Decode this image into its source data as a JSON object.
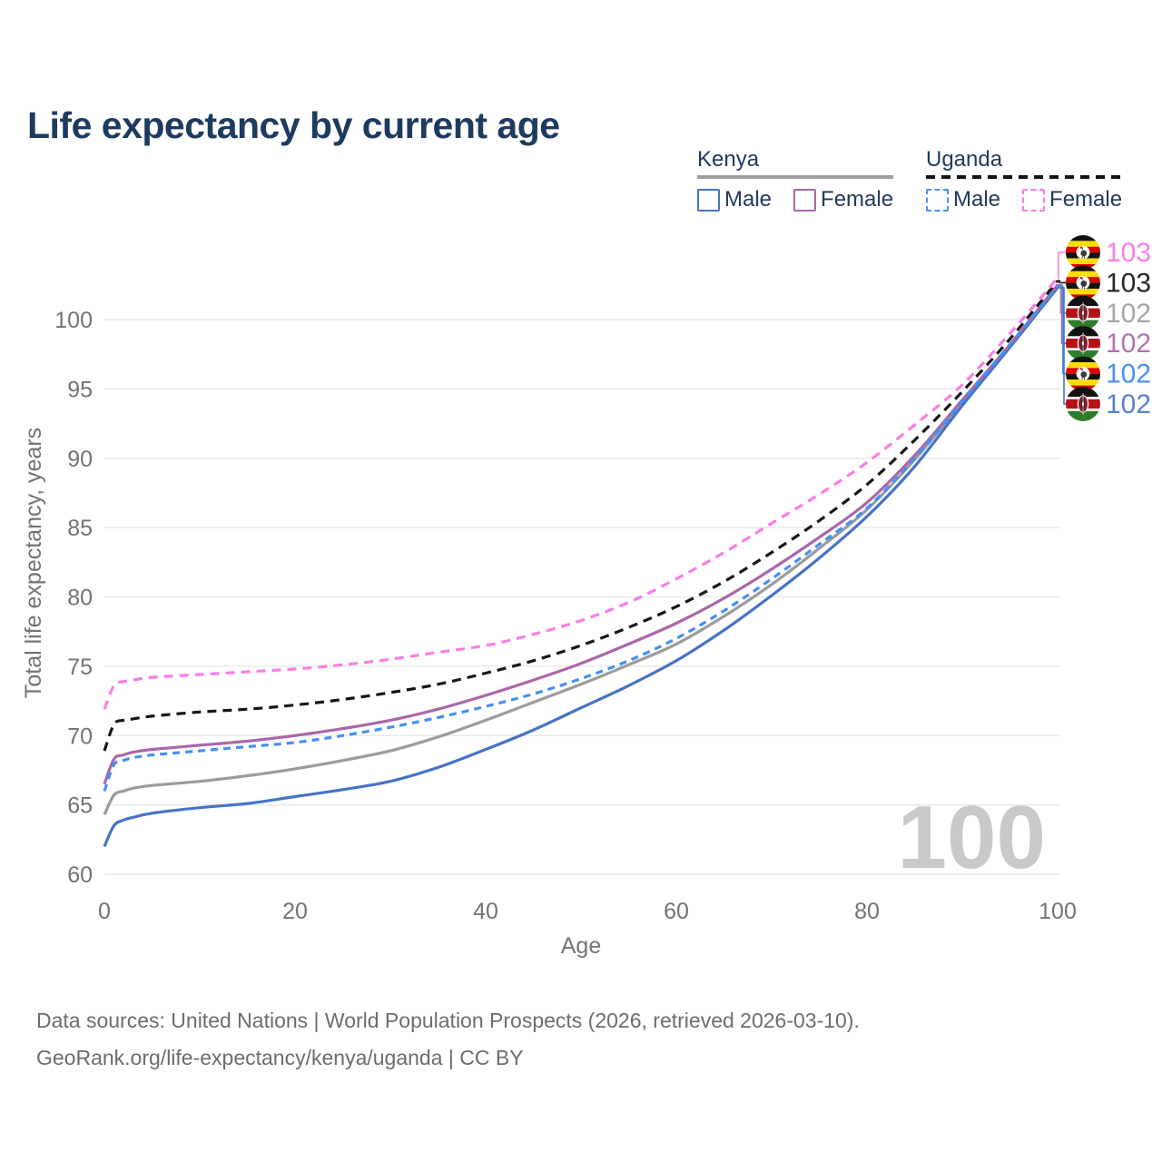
{
  "title": "Life expectancy by current age",
  "legend": {
    "kenya": {
      "label": "Kenya",
      "underline_color": "#9e9e9e",
      "underline_style": "solid",
      "male_label": "Male",
      "female_label": "Female",
      "male_color": "#4673c5",
      "female_color": "#ab67a9"
    },
    "uganda": {
      "label": "Uganda",
      "underline_color": "#141414",
      "underline_style": "dashed",
      "male_label": "Male",
      "female_label": "Female",
      "male_color": "#4590f2",
      "female_color": "#fb7de4"
    }
  },
  "chart_data": {
    "type": "line",
    "title": "Life expectancy by current age",
    "xlabel": "Age",
    "ylabel": "Total life expectancy, years",
    "xlim": [
      0,
      100
    ],
    "ylim": [
      60,
      100
    ],
    "x_ticks": [
      0,
      20,
      40,
      60,
      80,
      100
    ],
    "y_ticks": [
      60,
      65,
      70,
      75,
      80,
      85,
      90,
      95,
      100
    ],
    "grid": "horizontal",
    "gridline_color": "#e9e9e9",
    "tick_color": "#737373",
    "ages": [
      0,
      1,
      2,
      3,
      5,
      10,
      15,
      20,
      25,
      30,
      35,
      40,
      45,
      50,
      55,
      60,
      65,
      70,
      75,
      80,
      85,
      90,
      95,
      100
    ],
    "series": [
      {
        "name": "Kenya",
        "country": "kenya",
        "sex": "all",
        "color": "#9b9b9b",
        "dash": "none",
        "values": [
          64.3,
          65.7,
          66.0,
          66.2,
          66.4,
          66.7,
          67.1,
          67.6,
          68.2,
          68.9,
          69.9,
          71.1,
          72.4,
          73.7,
          75.1,
          76.6,
          78.6,
          80.9,
          83.5,
          86.3,
          89.9,
          94.0,
          98.1,
          102.4
        ]
      },
      {
        "name": "Kenya Male",
        "country": "kenya",
        "sex": "male",
        "color": "#4673c5",
        "dash": "none",
        "values": [
          62.0,
          63.5,
          63.9,
          64.1,
          64.4,
          64.8,
          65.1,
          65.6,
          66.1,
          66.7,
          67.7,
          69.0,
          70.4,
          72.0,
          73.6,
          75.4,
          77.6,
          80.1,
          82.8,
          85.8,
          89.4,
          93.8,
          98.0,
          102.3
        ]
      },
      {
        "name": "Kenya Female",
        "country": "kenya",
        "sex": "female",
        "color": "#ab67a9",
        "dash": "none",
        "values": [
          66.5,
          68.3,
          68.6,
          68.8,
          69.0,
          69.3,
          69.6,
          70.0,
          70.5,
          71.1,
          71.9,
          72.9,
          74.0,
          75.2,
          76.6,
          78.1,
          79.9,
          82.0,
          84.3,
          86.8,
          90.2,
          94.2,
          98.2,
          102.5
        ]
      },
      {
        "name": "Uganda Male",
        "country": "uganda",
        "sex": "male",
        "color": "#4590f2",
        "dash": "8 6",
        "values": [
          66.0,
          67.9,
          68.2,
          68.4,
          68.6,
          68.9,
          69.2,
          69.5,
          70.0,
          70.6,
          71.3,
          72.1,
          73.0,
          74.1,
          75.4,
          77.0,
          79.0,
          81.3,
          83.8,
          86.4,
          90.0,
          94.1,
          98.2,
          102.4
        ]
      },
      {
        "name": "Uganda",
        "country": "uganda",
        "sex": "all",
        "color": "#161616",
        "dash": "10 7",
        "values": [
          68.9,
          70.8,
          71.1,
          71.2,
          71.4,
          71.7,
          71.9,
          72.2,
          72.6,
          73.1,
          73.7,
          74.5,
          75.4,
          76.5,
          77.8,
          79.3,
          81.1,
          83.2,
          85.5,
          88.1,
          91.3,
          94.8,
          98.6,
          102.8
        ]
      },
      {
        "name": "Uganda Female",
        "country": "uganda",
        "sex": "female",
        "color": "#fb7de4",
        "dash": "10 7",
        "values": [
          71.9,
          73.6,
          73.9,
          74.0,
          74.2,
          74.4,
          74.6,
          74.8,
          75.1,
          75.5,
          76.0,
          76.5,
          77.3,
          78.3,
          79.6,
          81.3,
          83.2,
          85.3,
          87.4,
          89.7,
          92.4,
          95.3,
          99.0,
          103.0
        ]
      }
    ],
    "end_labels": [
      {
        "flag": "uganda",
        "value": "103",
        "color": "#fb7de4",
        "series": "Uganda Female"
      },
      {
        "flag": "uganda",
        "value": "103",
        "color": "#262626",
        "series": "Uganda"
      },
      {
        "flag": "kenya",
        "value": "102",
        "color": "#a6a6a6",
        "series": "Kenya"
      },
      {
        "flag": "kenya",
        "value": "102",
        "color": "#b671b4",
        "series": "Kenya Female"
      },
      {
        "flag": "uganda",
        "value": "102",
        "color": "#4a90ee",
        "series": "Uganda Male"
      },
      {
        "flag": "kenya",
        "value": "102",
        "color": "#5b7fd0",
        "series": "Kenya Male"
      }
    ],
    "watermark": "100",
    "watermark_color": "#c9c9c9"
  },
  "footer": {
    "line1": "Data sources: United Nations | World Population Prospects (2026, retrieved 2026-03-10).",
    "line2": "GeoRank.org/life-expectancy/kenya/uganda | CC BY"
  }
}
